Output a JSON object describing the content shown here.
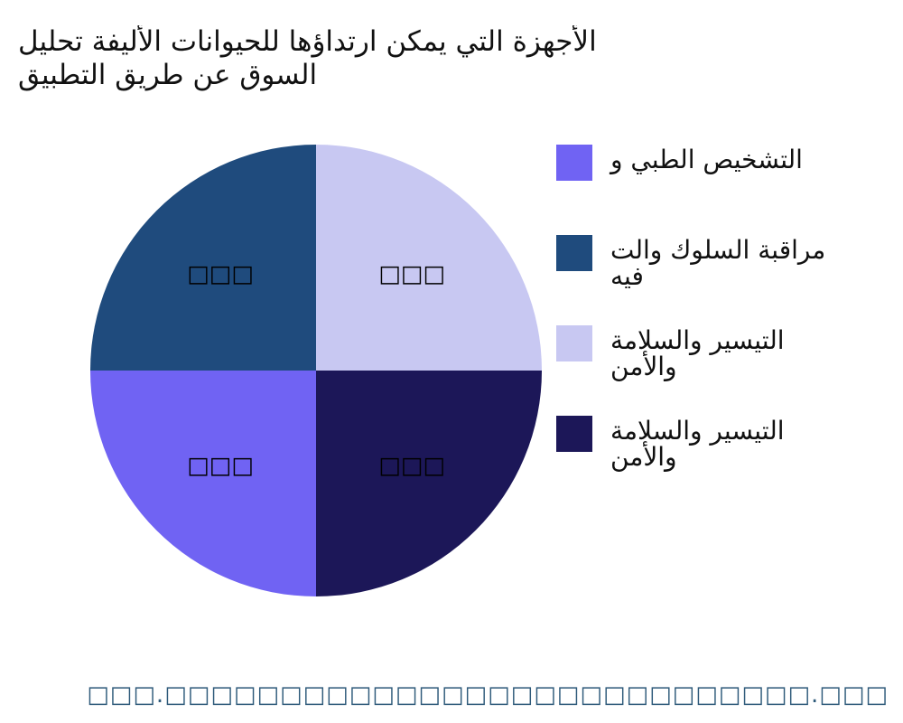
{
  "chart_data": {
    "type": "pie",
    "title": "الأجهزة التي يمكن ارتداؤها للحيوانات الأليفة تحليل\nالسوق عن طريق التطبيق",
    "slices": [
      {
        "name": "التشخيص الطبي و",
        "value": 25,
        "label": "□□□",
        "color": "#7063f3"
      },
      {
        "name": "مراقبة السلوك والت\nفيه",
        "value": 25,
        "label": "□□□",
        "color": "#1f4b7d"
      },
      {
        "name": "التيسير والسلامة\nوالأمن",
        "value": 25,
        "label": "□□□",
        "color": "#c8c8f2"
      },
      {
        "name": "التيسير والسلامة\nوالأمن",
        "value": 25,
        "label": "□□□",
        "color": "#1c1758"
      }
    ],
    "legend_position": "right"
  },
  "watermark": "□□□.□□□□□□□□□□□□□□□□□□□□□□□□□□□□.□□□"
}
